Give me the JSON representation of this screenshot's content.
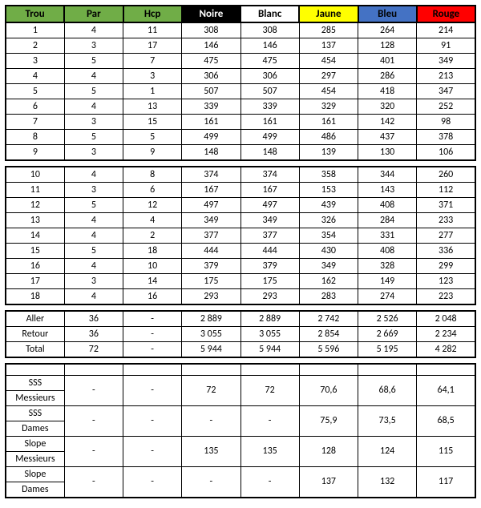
{
  "headers": {
    "trou": "Trou",
    "par": "Par",
    "hcp": "Hcp",
    "noire": "Noire",
    "blanc": "Blanc",
    "jaune": "Jaune",
    "bleu": "Bleu",
    "rouge": "Rouge"
  },
  "header_colors": {
    "green_bg": "#70ad47",
    "noire_bg": "#000000",
    "noire_fg": "#ffffff",
    "blanc_bg": "#ffffff",
    "jaune_bg": "#ffff00",
    "bleu_bg": "#4472c4",
    "rouge_bg": "#ff0000"
  },
  "front9": [
    {
      "trou": "1",
      "par": "4",
      "hcp": "11",
      "noire": "308",
      "blanc": "308",
      "jaune": "285",
      "bleu": "264",
      "rouge": "214"
    },
    {
      "trou": "2",
      "par": "3",
      "hcp": "17",
      "noire": "146",
      "blanc": "146",
      "jaune": "137",
      "bleu": "128",
      "rouge": "91"
    },
    {
      "trou": "3",
      "par": "5",
      "hcp": "7",
      "noire": "475",
      "blanc": "475",
      "jaune": "454",
      "bleu": "401",
      "rouge": "349"
    },
    {
      "trou": "4",
      "par": "4",
      "hcp": "3",
      "noire": "306",
      "blanc": "306",
      "jaune": "297",
      "bleu": "286",
      "rouge": "213"
    },
    {
      "trou": "5",
      "par": "5",
      "hcp": "1",
      "noire": "507",
      "blanc": "507",
      "jaune": "454",
      "bleu": "418",
      "rouge": "347"
    },
    {
      "trou": "6",
      "par": "4",
      "hcp": "13",
      "noire": "339",
      "blanc": "339",
      "jaune": "329",
      "bleu": "320",
      "rouge": "252"
    },
    {
      "trou": "7",
      "par": "3",
      "hcp": "15",
      "noire": "161",
      "blanc": "161",
      "jaune": "161",
      "bleu": "142",
      "rouge": "98"
    },
    {
      "trou": "8",
      "par": "5",
      "hcp": "5",
      "noire": "499",
      "blanc": "499",
      "jaune": "486",
      "bleu": "437",
      "rouge": "378"
    },
    {
      "trou": "9",
      "par": "3",
      "hcp": "9",
      "noire": "148",
      "blanc": "148",
      "jaune": "139",
      "bleu": "130",
      "rouge": "106"
    }
  ],
  "back9": [
    {
      "trou": "10",
      "par": "4",
      "hcp": "8",
      "noire": "374",
      "blanc": "374",
      "jaune": "358",
      "bleu": "344",
      "rouge": "260"
    },
    {
      "trou": "11",
      "par": "3",
      "hcp": "6",
      "noire": "167",
      "blanc": "167",
      "jaune": "153",
      "bleu": "143",
      "rouge": "112"
    },
    {
      "trou": "12",
      "par": "5",
      "hcp": "12",
      "noire": "497",
      "blanc": "497",
      "jaune": "439",
      "bleu": "408",
      "rouge": "371"
    },
    {
      "trou": "13",
      "par": "4",
      "hcp": "4",
      "noire": "349",
      "blanc": "349",
      "jaune": "326",
      "bleu": "284",
      "rouge": "233"
    },
    {
      "trou": "14",
      "par": "4",
      "hcp": "2",
      "noire": "377",
      "blanc": "377",
      "jaune": "354",
      "bleu": "331",
      "rouge": "277"
    },
    {
      "trou": "15",
      "par": "5",
      "hcp": "18",
      "noire": "444",
      "blanc": "444",
      "jaune": "430",
      "bleu": "408",
      "rouge": "336"
    },
    {
      "trou": "16",
      "par": "4",
      "hcp": "10",
      "noire": "379",
      "blanc": "379",
      "jaune": "349",
      "bleu": "328",
      "rouge": "299"
    },
    {
      "trou": "17",
      "par": "3",
      "hcp": "14",
      "noire": "175",
      "blanc": "175",
      "jaune": "162",
      "bleu": "149",
      "rouge": "123"
    },
    {
      "trou": "18",
      "par": "4",
      "hcp": "16",
      "noire": "293",
      "blanc": "293",
      "jaune": "283",
      "bleu": "274",
      "rouge": "223"
    }
  ],
  "totals": [
    {
      "label": "Aller",
      "par": "36",
      "hcp": "-",
      "noire": "2 889",
      "blanc": "2 889",
      "jaune": "2 742",
      "bleu": "2 526",
      "rouge": "2 048"
    },
    {
      "label": "Retour",
      "par": "36",
      "hcp": "-",
      "noire": "3 055",
      "blanc": "3 055",
      "jaune": "2 854",
      "bleu": "2 669",
      "rouge": "2 234"
    },
    {
      "label": "Total",
      "par": "72",
      "hcp": "-",
      "noire": "5 944",
      "blanc": "5 944",
      "jaune": "5 596",
      "bleu": "5 195",
      "rouge": "4 282"
    }
  ],
  "ratings": [
    {
      "label1": "SSS",
      "label2": "Messieurs",
      "par": "-",
      "hcp": "-",
      "noire": "72",
      "blanc": "72",
      "jaune": "70,6",
      "bleu": "68,6",
      "rouge": "64,1"
    },
    {
      "label1": "SSS",
      "label2": "Dames",
      "par": "-",
      "hcp": "-",
      "noire": "-",
      "blanc": "-",
      "jaune": "75,9",
      "bleu": "73,5",
      "rouge": "68,5"
    },
    {
      "label1": "Slope",
      "label2": "Messieurs",
      "par": "-",
      "hcp": "-",
      "noire": "135",
      "blanc": "135",
      "jaune": "128",
      "bleu": "124",
      "rouge": "115"
    },
    {
      "label1": "Slope",
      "label2": "Dames",
      "par": "-",
      "hcp": "-",
      "noire": "-",
      "blanc": "-",
      "jaune": "137",
      "bleu": "132",
      "rouge": "117"
    }
  ]
}
